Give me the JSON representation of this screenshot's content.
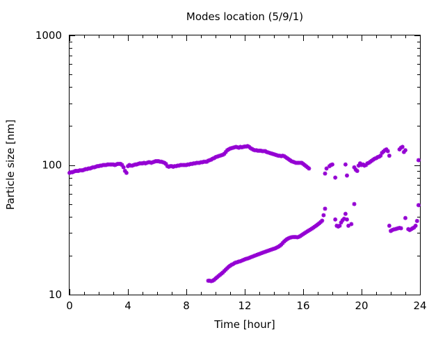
{
  "chart_data": {
    "type": "scatter",
    "title": "Modes location (5/9/1)",
    "xlabel": "Time [hour]",
    "ylabel": "Particle size [nm]",
    "xlim": [
      0,
      24
    ],
    "ylim": [
      10,
      1000
    ],
    "yscale": "log",
    "xticks": [
      0,
      4,
      8,
      12,
      16,
      20,
      24
    ],
    "xtick_labels": [
      "0",
      "4",
      "8",
      "12",
      "16",
      "20",
      "24"
    ],
    "yticks": [
      10,
      100,
      1000
    ],
    "ytick_labels": [
      "10",
      "100",
      "1000"
    ],
    "grid": false,
    "legend": false,
    "marker_color": "#9400d3",
    "marker": "asterisk",
    "series": [
      {
        "points": [
          [
            0.0,
            87
          ],
          [
            0.1,
            88
          ],
          [
            0.2,
            88
          ],
          [
            0.3,
            89
          ],
          [
            0.4,
            90
          ],
          [
            0.5,
            90
          ],
          [
            0.6,
            90
          ],
          [
            0.7,
            91
          ],
          [
            0.8,
            91
          ],
          [
            0.9,
            91
          ],
          [
            1.0,
            92
          ],
          [
            1.1,
            93
          ],
          [
            1.2,
            93
          ],
          [
            1.3,
            94
          ],
          [
            1.4,
            94
          ],
          [
            1.5,
            95
          ],
          [
            1.6,
            96
          ],
          [
            1.7,
            96
          ],
          [
            1.8,
            97
          ],
          [
            1.9,
            98
          ],
          [
            2.0,
            98
          ],
          [
            2.1,
            99
          ],
          [
            2.2,
            99
          ],
          [
            2.3,
            100
          ],
          [
            2.4,
            100
          ],
          [
            2.5,
            100
          ],
          [
            2.6,
            101
          ],
          [
            2.7,
            101
          ],
          [
            2.8,
            101
          ],
          [
            2.9,
            101
          ],
          [
            3.0,
            101
          ],
          [
            3.1,
            100
          ],
          [
            3.2,
            101
          ],
          [
            3.3,
            102
          ],
          [
            3.4,
            102
          ],
          [
            3.5,
            102
          ],
          [
            3.6,
            100
          ],
          [
            3.7,
            96
          ],
          [
            3.8,
            90
          ],
          [
            3.9,
            87
          ],
          [
            4.0,
            98
          ],
          [
            4.1,
            100
          ],
          [
            4.2,
            99
          ],
          [
            4.3,
            99
          ],
          [
            4.4,
            100
          ],
          [
            4.5,
            101
          ],
          [
            4.6,
            101
          ],
          [
            4.7,
            102
          ],
          [
            4.8,
            103
          ],
          [
            4.9,
            103
          ],
          [
            5.0,
            103
          ],
          [
            5.1,
            104
          ],
          [
            5.2,
            103
          ],
          [
            5.3,
            104
          ],
          [
            5.4,
            105
          ],
          [
            5.5,
            105
          ],
          [
            5.6,
            104
          ],
          [
            5.7,
            105
          ],
          [
            5.8,
            106
          ],
          [
            5.9,
            107
          ],
          [
            6.0,
            107
          ],
          [
            6.1,
            107
          ],
          [
            6.2,
            106
          ],
          [
            6.3,
            106
          ],
          [
            6.4,
            105
          ],
          [
            6.5,
            104
          ],
          [
            6.6,
            102
          ],
          [
            6.7,
            98
          ],
          [
            6.8,
            97
          ],
          [
            6.9,
            98
          ],
          [
            7.0,
            98
          ],
          [
            7.1,
            97
          ],
          [
            7.2,
            98
          ],
          [
            7.3,
            98
          ],
          [
            7.4,
            99
          ],
          [
            7.5,
            99
          ],
          [
            7.6,
            100
          ],
          [
            7.7,
            100
          ],
          [
            7.8,
            100
          ],
          [
            7.9,
            100
          ],
          [
            8.0,
            100
          ],
          [
            8.1,
            101
          ],
          [
            8.2,
            101
          ],
          [
            8.3,
            102
          ],
          [
            8.4,
            102
          ],
          [
            8.5,
            103
          ],
          [
            8.6,
            103
          ],
          [
            8.7,
            104
          ],
          [
            8.8,
            104
          ],
          [
            8.9,
            104
          ],
          [
            9.0,
            105
          ],
          [
            9.1,
            105
          ],
          [
            9.2,
            106
          ],
          [
            9.3,
            106
          ],
          [
            9.4,
            106
          ],
          [
            9.5,
            108
          ],
          [
            9.6,
            109
          ],
          [
            9.7,
            110
          ],
          [
            9.8,
            112
          ],
          [
            9.9,
            113
          ],
          [
            10.0,
            115
          ],
          [
            10.1,
            116
          ],
          [
            10.2,
            117
          ],
          [
            10.3,
            118
          ],
          [
            10.4,
            119
          ],
          [
            10.5,
            120
          ],
          [
            10.6,
            122
          ],
          [
            10.7,
            126
          ],
          [
            10.8,
            130
          ],
          [
            10.9,
            132
          ],
          [
            11.0,
            134
          ],
          [
            11.1,
            135
          ],
          [
            11.2,
            136
          ],
          [
            11.3,
            137
          ],
          [
            11.4,
            138
          ],
          [
            11.5,
            137
          ],
          [
            11.6,
            136
          ],
          [
            11.7,
            138
          ],
          [
            11.8,
            137
          ],
          [
            11.9,
            138
          ],
          [
            12.0,
            139
          ],
          [
            12.1,
            139
          ],
          [
            12.2,
            140
          ],
          [
            12.3,
            138
          ],
          [
            12.4,
            135
          ],
          [
            12.5,
            133
          ],
          [
            12.6,
            131
          ],
          [
            12.7,
            130
          ],
          [
            12.8,
            130
          ],
          [
            12.9,
            129
          ],
          [
            13.0,
            129
          ],
          [
            13.1,
            129
          ],
          [
            13.2,
            128
          ],
          [
            13.3,
            128
          ],
          [
            13.4,
            128
          ],
          [
            13.5,
            126
          ],
          [
            13.6,
            125
          ],
          [
            13.7,
            124
          ],
          [
            13.8,
            123
          ],
          [
            13.9,
            122
          ],
          [
            14.0,
            121
          ],
          [
            14.1,
            120
          ],
          [
            14.2,
            119
          ],
          [
            14.3,
            118
          ],
          [
            14.4,
            118
          ],
          [
            14.5,
            117
          ],
          [
            14.6,
            118
          ],
          [
            14.7,
            117
          ],
          [
            14.8,
            115
          ],
          [
            14.9,
            113
          ],
          [
            15.0,
            111
          ],
          [
            15.1,
            109
          ],
          [
            15.2,
            107
          ],
          [
            15.3,
            106
          ],
          [
            15.4,
            105
          ],
          [
            15.5,
            104
          ],
          [
            15.6,
            104
          ],
          [
            15.7,
            104
          ],
          [
            15.8,
            104
          ],
          [
            15.9,
            104
          ],
          [
            16.0,
            102
          ],
          [
            16.1,
            100
          ],
          [
            16.2,
            98
          ],
          [
            16.3,
            96
          ],
          [
            16.4,
            94
          ],
          [
            17.5,
            86
          ],
          [
            17.6,
            94
          ],
          [
            17.8,
            98
          ],
          [
            17.9,
            100
          ],
          [
            18.0,
            101
          ],
          [
            18.2,
            80
          ],
          [
            18.9,
            101
          ],
          [
            19.0,
            83
          ],
          [
            19.5,
            96
          ],
          [
            19.6,
            92
          ],
          [
            19.7,
            90
          ],
          [
            19.8,
            99
          ],
          [
            19.9,
            103
          ],
          [
            20.0,
            100
          ],
          [
            20.1,
            101
          ],
          [
            20.2,
            99
          ],
          [
            20.3,
            100
          ],
          [
            20.4,
            103
          ],
          [
            20.5,
            104
          ],
          [
            20.6,
            106
          ],
          [
            20.7,
            108
          ],
          [
            20.8,
            110
          ],
          [
            20.9,
            112
          ],
          [
            21.0,
            113
          ],
          [
            21.1,
            115
          ],
          [
            21.2,
            116
          ],
          [
            21.3,
            118
          ],
          [
            21.4,
            124
          ],
          [
            21.5,
            127
          ],
          [
            21.6,
            130
          ],
          [
            21.7,
            132
          ],
          [
            21.8,
            128
          ],
          [
            21.9,
            118
          ],
          [
            22.6,
            132
          ],
          [
            22.7,
            136
          ],
          [
            22.8,
            138
          ],
          [
            22.9,
            126
          ],
          [
            23.0,
            130
          ],
          [
            23.9,
            109
          ],
          [
            9.5,
            12.8
          ],
          [
            9.6,
            12.8
          ],
          [
            9.7,
            12.7
          ],
          [
            9.8,
            12.8
          ],
          [
            9.9,
            13.0
          ],
          [
            10.0,
            13.3
          ],
          [
            10.1,
            13.6
          ],
          [
            10.2,
            13.9
          ],
          [
            10.3,
            14.2
          ],
          [
            10.4,
            14.5
          ],
          [
            10.5,
            14.8
          ],
          [
            10.6,
            15.2
          ],
          [
            10.7,
            15.6
          ],
          [
            10.8,
            16.0
          ],
          [
            10.9,
            16.4
          ],
          [
            11.0,
            16.7
          ],
          [
            11.1,
            17.0
          ],
          [
            11.2,
            17.2
          ],
          [
            11.3,
            17.5
          ],
          [
            11.4,
            17.7
          ],
          [
            11.5,
            17.8
          ],
          [
            11.6,
            18.0
          ],
          [
            11.7,
            18.1
          ],
          [
            11.8,
            18.3
          ],
          [
            11.9,
            18.5
          ],
          [
            12.0,
            18.7
          ],
          [
            12.1,
            18.9
          ],
          [
            12.2,
            19.0
          ],
          [
            12.3,
            19.2
          ],
          [
            12.4,
            19.4
          ],
          [
            12.5,
            19.6
          ],
          [
            12.6,
            19.8
          ],
          [
            12.7,
            20.0
          ],
          [
            12.8,
            20.2
          ],
          [
            12.9,
            20.4
          ],
          [
            13.0,
            20.6
          ],
          [
            13.1,
            20.8
          ],
          [
            13.2,
            21.0
          ],
          [
            13.3,
            21.2
          ],
          [
            13.4,
            21.4
          ],
          [
            13.5,
            21.6
          ],
          [
            13.6,
            21.8
          ],
          [
            13.7,
            22.0
          ],
          [
            13.8,
            22.2
          ],
          [
            13.9,
            22.4
          ],
          [
            14.0,
            22.6
          ],
          [
            14.1,
            22.8
          ],
          [
            14.2,
            23.1
          ],
          [
            14.3,
            23.4
          ],
          [
            14.4,
            23.8
          ],
          [
            14.5,
            24.3
          ],
          [
            14.6,
            25.0
          ],
          [
            14.7,
            25.7
          ],
          [
            14.8,
            26.3
          ],
          [
            14.9,
            26.8
          ],
          [
            15.0,
            27.2
          ],
          [
            15.1,
            27.5
          ],
          [
            15.2,
            27.7
          ],
          [
            15.3,
            27.8
          ],
          [
            15.4,
            27.8
          ],
          [
            15.5,
            27.8
          ],
          [
            15.6,
            27.7
          ],
          [
            15.7,
            27.9
          ],
          [
            15.8,
            28.3
          ],
          [
            15.9,
            28.8
          ],
          [
            16.0,
            29.3
          ],
          [
            16.1,
            29.8
          ],
          [
            16.2,
            30.3
          ],
          [
            16.3,
            30.8
          ],
          [
            16.4,
            31.3
          ],
          [
            16.5,
            31.8
          ],
          [
            16.6,
            32.3
          ],
          [
            16.7,
            32.9
          ],
          [
            16.8,
            33.5
          ],
          [
            16.9,
            34.1
          ],
          [
            17.0,
            34.8
          ],
          [
            17.1,
            35.5
          ],
          [
            17.2,
            36.3
          ],
          [
            17.3,
            37.2
          ],
          [
            17.4,
            41.0
          ],
          [
            17.5,
            46.0
          ],
          [
            18.2,
            38.0
          ],
          [
            18.3,
            34.0
          ],
          [
            18.4,
            33.5
          ],
          [
            18.5,
            34.0
          ],
          [
            18.6,
            36.0
          ],
          [
            18.7,
            37.5
          ],
          [
            18.8,
            38.5
          ],
          [
            18.9,
            42.0
          ],
          [
            19.0,
            38.0
          ],
          [
            19.1,
            34.0
          ],
          [
            19.3,
            35.0
          ],
          [
            19.5,
            50.0
          ],
          [
            21.9,
            34.0
          ],
          [
            22.0,
            31.0
          ],
          [
            22.1,
            31.5
          ],
          [
            22.2,
            31.8
          ],
          [
            22.3,
            32.0
          ],
          [
            22.4,
            32.2
          ],
          [
            22.5,
            32.5
          ],
          [
            22.6,
            32.7
          ],
          [
            22.7,
            32.5
          ],
          [
            23.0,
            39.0
          ],
          [
            23.2,
            32.0
          ],
          [
            23.3,
            31.5
          ],
          [
            23.4,
            32.0
          ],
          [
            23.5,
            32.5
          ],
          [
            23.6,
            33.0
          ],
          [
            23.7,
            34.0
          ],
          [
            23.8,
            37.0
          ],
          [
            23.9,
            49.0
          ]
        ]
      }
    ]
  }
}
